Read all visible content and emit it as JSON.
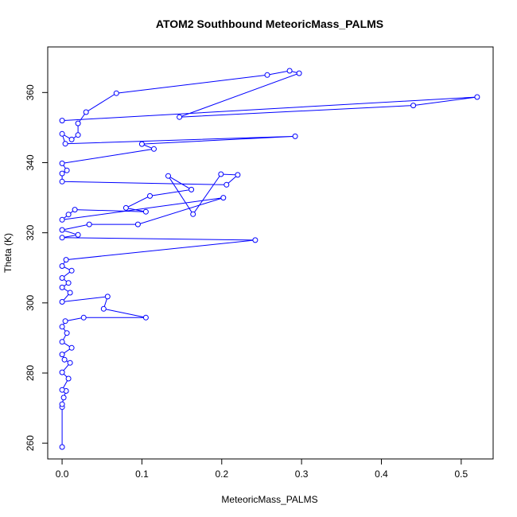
{
  "chart_data": {
    "type": "line",
    "title": "ATOM2 Southbound MeteoricMass_PALMS",
    "xlabel": "MeteoricMass_PALMS",
    "ylabel": "Theta (K)",
    "xlim": [
      -0.018,
      0.54
    ],
    "ylim": [
      255.5,
      373
    ],
    "x_ticks": [
      0.0,
      0.1,
      0.2,
      0.3,
      0.4,
      0.5
    ],
    "x_tick_labels": [
      "0.0",
      "0.1",
      "0.2",
      "0.3",
      "0.4",
      "0.5"
    ],
    "y_ticks": [
      260,
      280,
      300,
      320,
      340,
      360
    ],
    "y_tick_labels": [
      "260",
      "280",
      "300",
      "320",
      "340",
      "360"
    ],
    "grid": false,
    "legend": "none",
    "series_color": "#0000ff",
    "marker": "open-circle",
    "points": [
      [
        0.0,
        258.9
      ],
      [
        0.0,
        270.3
      ],
      [
        0.0,
        271.1
      ],
      [
        0.002,
        273.0
      ],
      [
        0.005,
        274.9
      ],
      [
        0.0,
        275.2
      ],
      [
        0.008,
        278.4
      ],
      [
        0.0,
        280.2
      ],
      [
        0.01,
        282.9
      ],
      [
        0.003,
        283.8
      ],
      [
        0.0,
        285.3
      ],
      [
        0.012,
        287.2
      ],
      [
        0.0,
        288.9
      ],
      [
        0.006,
        291.4
      ],
      [
        0.0,
        293.2
      ],
      [
        0.004,
        294.8
      ],
      [
        0.027,
        295.8
      ],
      [
        0.105,
        295.8
      ],
      [
        0.052,
        298.3
      ],
      [
        0.057,
        301.8
      ],
      [
        0.0,
        300.3
      ],
      [
        0.01,
        302.9
      ],
      [
        0.0,
        304.4
      ],
      [
        0.008,
        305.7
      ],
      [
        0.0,
        307.1
      ],
      [
        0.012,
        309.2
      ],
      [
        0.0,
        310.5
      ],
      [
        0.005,
        312.3
      ],
      [
        0.242,
        317.9
      ],
      [
        0.0,
        318.6
      ],
      [
        0.02,
        319.4
      ],
      [
        0.0,
        320.8
      ],
      [
        0.034,
        322.4
      ],
      [
        0.095,
        322.4
      ],
      [
        0.202,
        330.0
      ],
      [
        0.0,
        323.7
      ],
      [
        0.008,
        325.2
      ],
      [
        0.016,
        326.6
      ],
      [
        0.105,
        326.0
      ],
      [
        0.08,
        327.1
      ],
      [
        0.11,
        330.5
      ],
      [
        0.162,
        332.3
      ],
      [
        0.133,
        336.2
      ],
      [
        0.164,
        325.3
      ],
      [
        0.199,
        336.7
      ],
      [
        0.22,
        336.5
      ],
      [
        0.206,
        333.7
      ],
      [
        0.0,
        334.6
      ],
      [
        0.0,
        336.9
      ],
      [
        0.006,
        337.8
      ],
      [
        0.0,
        339.8
      ],
      [
        0.115,
        343.9
      ],
      [
        0.1,
        345.3
      ],
      [
        0.292,
        347.5
      ],
      [
        0.004,
        345.4
      ],
      [
        0.0,
        348.2
      ],
      [
        0.012,
        346.6
      ],
      [
        0.02,
        347.9
      ],
      [
        0.02,
        351.2
      ],
      [
        0.03,
        354.4
      ],
      [
        0.068,
        359.8
      ],
      [
        0.257,
        365.0
      ],
      [
        0.285,
        366.2
      ],
      [
        0.297,
        365.5
      ],
      [
        0.147,
        353.0
      ],
      [
        0.44,
        356.3
      ],
      [
        0.52,
        358.7
      ],
      [
        0.0,
        352.0
      ]
    ]
  }
}
